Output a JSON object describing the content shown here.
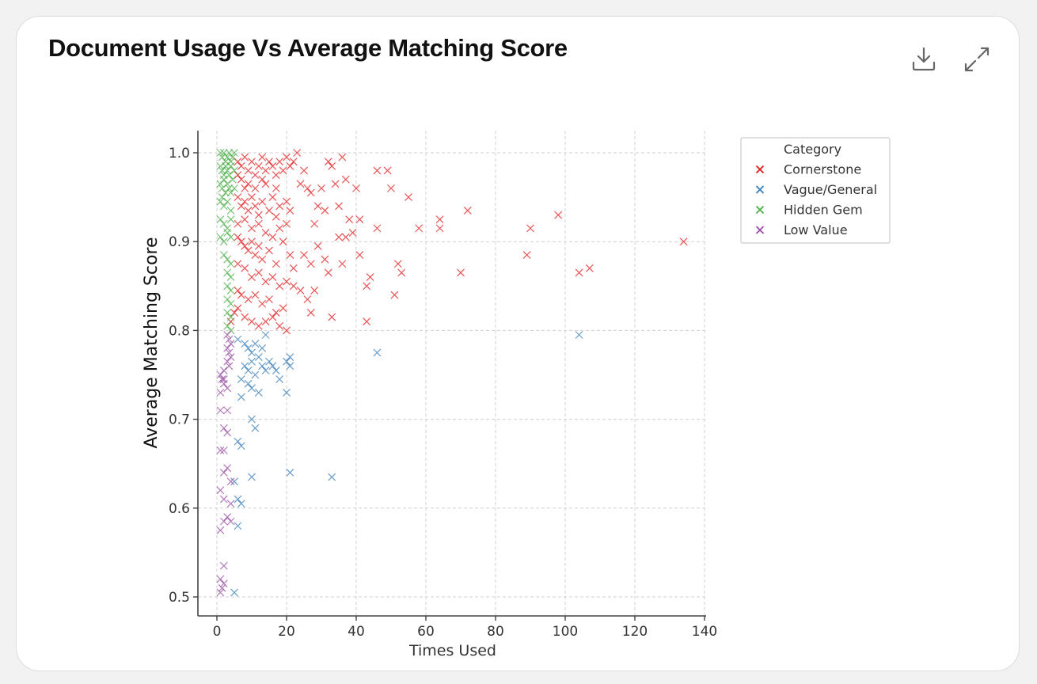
{
  "card": {
    "title": "Document Usage Vs Average Matching Score",
    "download_icon": "download-icon",
    "expand_icon": "expand-icon"
  },
  "chart_data": {
    "type": "scatter",
    "title": "Document Usage Vs Average Matching Score",
    "xlabel": "Times Used",
    "ylabel": "Average Matching Score",
    "xlim": [
      -5,
      140
    ],
    "ylim": [
      0.48,
      1.025
    ],
    "xticks": [
      0,
      20,
      40,
      60,
      80,
      100,
      120,
      140
    ],
    "yticks": [
      0.5,
      0.6,
      0.7,
      0.8,
      0.9,
      1.0
    ],
    "ytick_labels": [
      "0.5",
      "0.6",
      "0.7",
      "0.8",
      "0.9",
      "1.0"
    ],
    "grid": true,
    "marker": "x",
    "legend_title": "Category",
    "legend_position": "outside-top-right",
    "series": [
      {
        "name": "Cornerstone",
        "color": "#e41a1c",
        "points": [
          [
            6,
            0.99
          ],
          [
            7,
            0.985
          ],
          [
            8,
            0.995
          ],
          [
            9,
            0.98
          ],
          [
            10,
            0.99
          ],
          [
            11,
            0.975
          ],
          [
            12,
            0.985
          ],
          [
            13,
            0.995
          ],
          [
            14,
            0.98
          ],
          [
            15,
            0.99
          ],
          [
            16,
            0.985
          ],
          [
            17,
            0.975
          ],
          [
            18,
            0.99
          ],
          [
            19,
            0.98
          ],
          [
            20,
            0.995
          ],
          [
            21,
            0.985
          ],
          [
            22,
            0.99
          ],
          [
            23,
            1.0
          ],
          [
            7,
            0.97
          ],
          [
            9,
            0.965
          ],
          [
            11,
            0.96
          ],
          [
            14,
            0.965
          ],
          [
            13,
            0.97
          ],
          [
            17,
            0.96
          ],
          [
            6,
            0.975
          ],
          [
            8,
            0.96
          ],
          [
            6,
            0.95
          ],
          [
            7,
            0.94
          ],
          [
            8,
            0.945
          ],
          [
            9,
            0.935
          ],
          [
            10,
            0.95
          ],
          [
            11,
            0.94
          ],
          [
            12,
            0.93
          ],
          [
            13,
            0.945
          ],
          [
            15,
            0.935
          ],
          [
            16,
            0.95
          ],
          [
            17,
            0.928
          ],
          [
            18,
            0.94
          ],
          [
            20,
            0.945
          ],
          [
            21,
            0.935
          ],
          [
            6,
            0.92
          ],
          [
            8,
            0.925
          ],
          [
            10,
            0.915
          ],
          [
            12,
            0.92
          ],
          [
            14,
            0.91
          ],
          [
            16,
            0.905
          ],
          [
            18,
            0.915
          ],
          [
            20,
            0.92
          ],
          [
            6,
            0.905
          ],
          [
            7,
            0.9
          ],
          [
            8,
            0.895
          ],
          [
            9,
            0.89
          ],
          [
            10,
            0.9
          ],
          [
            11,
            0.885
          ],
          [
            12,
            0.895
          ],
          [
            13,
            0.88
          ],
          [
            15,
            0.89
          ],
          [
            17,
            0.875
          ],
          [
            19,
            0.9
          ],
          [
            21,
            0.885
          ],
          [
            22,
            0.87
          ],
          [
            6,
            0.875
          ],
          [
            8,
            0.87
          ],
          [
            10,
            0.86
          ],
          [
            12,
            0.865
          ],
          [
            14,
            0.855
          ],
          [
            16,
            0.86
          ],
          [
            18,
            0.85
          ],
          [
            20,
            0.855
          ],
          [
            22,
            0.85
          ],
          [
            6,
            0.845
          ],
          [
            7,
            0.84
          ],
          [
            9,
            0.835
          ],
          [
            11,
            0.84
          ],
          [
            13,
            0.83
          ],
          [
            15,
            0.835
          ],
          [
            17,
            0.82
          ],
          [
            19,
            0.825
          ],
          [
            6,
            0.825
          ],
          [
            8,
            0.815
          ],
          [
            10,
            0.81
          ],
          [
            12,
            0.805
          ],
          [
            14,
            0.81
          ],
          [
            16,
            0.815
          ],
          [
            18,
            0.805
          ],
          [
            20,
            0.8
          ],
          [
            4,
            0.81
          ],
          [
            5,
            0.82
          ],
          [
            25,
            0.98
          ],
          [
            26,
            0.96
          ],
          [
            27,
            0.955
          ],
          [
            29,
            0.94
          ],
          [
            30,
            0.96
          ],
          [
            31,
            0.935
          ],
          [
            32,
            0.99
          ],
          [
            33,
            0.985
          ],
          [
            34,
            0.965
          ],
          [
            35,
            0.94
          ],
          [
            36,
            0.995
          ],
          [
            37,
            0.97
          ],
          [
            38,
            0.925
          ],
          [
            39,
            0.91
          ],
          [
            40,
            0.96
          ],
          [
            41,
            0.925
          ],
          [
            28,
            0.92
          ],
          [
            24,
            0.965
          ],
          [
            35,
            0.905
          ],
          [
            37,
            0.905
          ],
          [
            25,
            0.885
          ],
          [
            27,
            0.875
          ],
          [
            29,
            0.895
          ],
          [
            31,
            0.88
          ],
          [
            32,
            0.865
          ],
          [
            36,
            0.875
          ],
          [
            41,
            0.885
          ],
          [
            24,
            0.845
          ],
          [
            26,
            0.835
          ],
          [
            28,
            0.845
          ],
          [
            27,
            0.82
          ],
          [
            33,
            0.815
          ],
          [
            43,
            0.85
          ],
          [
            44,
            0.86
          ],
          [
            43,
            0.81
          ],
          [
            46,
            0.98
          ],
          [
            49,
            0.98
          ],
          [
            50,
            0.96
          ],
          [
            55,
            0.95
          ],
          [
            46,
            0.915
          ],
          [
            51,
            0.84
          ],
          [
            52,
            0.875
          ],
          [
            53,
            0.865
          ],
          [
            58,
            0.915
          ],
          [
            64,
            0.925
          ],
          [
            64,
            0.915
          ],
          [
            70,
            0.865
          ],
          [
            72,
            0.935
          ],
          [
            89,
            0.885
          ],
          [
            90,
            0.915
          ],
          [
            98,
            0.93
          ],
          [
            104,
            0.865
          ],
          [
            107,
            0.87
          ],
          [
            134,
            0.9
          ]
        ]
      },
      {
        "name": "Vague/General",
        "color": "#377eb8",
        "points": [
          [
            6,
            0.79
          ],
          [
            8,
            0.785
          ],
          [
            9,
            0.78
          ],
          [
            10,
            0.775
          ],
          [
            11,
            0.785
          ],
          [
            12,
            0.77
          ],
          [
            13,
            0.78
          ],
          [
            14,
            0.795
          ],
          [
            15,
            0.765
          ],
          [
            16,
            0.76
          ],
          [
            17,
            0.755
          ],
          [
            18,
            0.745
          ],
          [
            8,
            0.76
          ],
          [
            9,
            0.755
          ],
          [
            10,
            0.765
          ],
          [
            11,
            0.75
          ],
          [
            13,
            0.76
          ],
          [
            14,
            0.755
          ],
          [
            7,
            0.745
          ],
          [
            9,
            0.74
          ],
          [
            10,
            0.735
          ],
          [
            12,
            0.73
          ],
          [
            20,
            0.765
          ],
          [
            21,
            0.76
          ],
          [
            21,
            0.77
          ],
          [
            46,
            0.775
          ],
          [
            104,
            0.795
          ],
          [
            20,
            0.73
          ],
          [
            7,
            0.725
          ],
          [
            10,
            0.7
          ],
          [
            11,
            0.69
          ],
          [
            6,
            0.675
          ],
          [
            7,
            0.67
          ],
          [
            5,
            0.63
          ],
          [
            10,
            0.635
          ],
          [
            6,
            0.61
          ],
          [
            7,
            0.605
          ],
          [
            21,
            0.64
          ],
          [
            33,
            0.635
          ],
          [
            6,
            0.58
          ],
          [
            5,
            0.505
          ]
        ]
      },
      {
        "name": "Hidden Gem",
        "color": "#4daf4a",
        "points": [
          [
            1,
            1.0
          ],
          [
            1.5,
            0.995
          ],
          [
            2,
            1.0
          ],
          [
            2.5,
            0.99
          ],
          [
            3,
            0.995
          ],
          [
            3.5,
            1.0
          ],
          [
            4,
            0.99
          ],
          [
            4.5,
            0.995
          ],
          [
            5,
            1.0
          ],
          [
            1,
            0.985
          ],
          [
            1.5,
            0.98
          ],
          [
            2,
            0.975
          ],
          [
            2.5,
            0.985
          ],
          [
            3,
            0.98
          ],
          [
            3.5,
            0.975
          ],
          [
            4,
            0.985
          ],
          [
            4.5,
            0.97
          ],
          [
            5,
            0.98
          ],
          [
            1,
            0.965
          ],
          [
            1.5,
            0.96
          ],
          [
            2,
            0.97
          ],
          [
            2.5,
            0.955
          ],
          [
            3,
            0.965
          ],
          [
            3.5,
            0.96
          ],
          [
            4,
            0.955
          ],
          [
            5,
            0.96
          ],
          [
            1,
            0.945
          ],
          [
            1.5,
            0.95
          ],
          [
            2,
            0.94
          ],
          [
            3,
            0.945
          ],
          [
            4,
            0.935
          ],
          [
            1,
            0.925
          ],
          [
            2,
            0.92
          ],
          [
            3,
            0.915
          ],
          [
            4,
            0.925
          ],
          [
            1,
            0.905
          ],
          [
            2,
            0.9
          ],
          [
            3,
            0.91
          ],
          [
            4,
            0.905
          ],
          [
            2,
            0.885
          ],
          [
            3,
            0.88
          ],
          [
            4,
            0.875
          ],
          [
            3,
            0.865
          ],
          [
            4,
            0.86
          ],
          [
            3,
            0.85
          ],
          [
            4,
            0.845
          ],
          [
            3,
            0.835
          ],
          [
            4,
            0.83
          ],
          [
            3,
            0.82
          ],
          [
            4,
            0.815
          ],
          [
            3,
            0.805
          ],
          [
            4,
            0.8
          ]
        ]
      },
      {
        "name": "Low Value",
        "color": "#984ea3",
        "points": [
          [
            3,
            0.795
          ],
          [
            3.5,
            0.79
          ],
          [
            4,
            0.785
          ],
          [
            3,
            0.78
          ],
          [
            3.5,
            0.775
          ],
          [
            4,
            0.77
          ],
          [
            3,
            0.765
          ],
          [
            3.5,
            0.76
          ],
          [
            2,
            0.755
          ],
          [
            1,
            0.75
          ],
          [
            1.5,
            0.745
          ],
          [
            2,
            0.74
          ],
          [
            3,
            0.735
          ],
          [
            1,
            0.73
          ],
          [
            2,
            0.745
          ],
          [
            1,
            0.71
          ],
          [
            3,
            0.71
          ],
          [
            2,
            0.69
          ],
          [
            3,
            0.685
          ],
          [
            2,
            0.665
          ],
          [
            1,
            0.665
          ],
          [
            3,
            0.645
          ],
          [
            2,
            0.64
          ],
          [
            4,
            0.63
          ],
          [
            1,
            0.62
          ],
          [
            2,
            0.61
          ],
          [
            4,
            0.605
          ],
          [
            3,
            0.59
          ],
          [
            2,
            0.585
          ],
          [
            4,
            0.585
          ],
          [
            1,
            0.575
          ],
          [
            2,
            0.535
          ],
          [
            1,
            0.52
          ],
          [
            2,
            0.515
          ],
          [
            1.5,
            0.51
          ],
          [
            1,
            0.505
          ]
        ]
      }
    ]
  }
}
